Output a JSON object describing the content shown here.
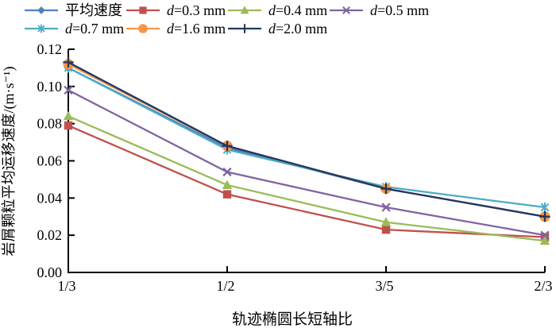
{
  "figure": {
    "background": "#ffffff",
    "axis_color": "#000000"
  },
  "chart_data": {
    "type": "line",
    "title": "",
    "xlabel": "轨迹椭圆长短轴比",
    "ylabel": "岩屑颗粒平均运移速度/(m·s⁻¹)",
    "categories": [
      "1/3",
      "1/2",
      "3/5",
      "2/3"
    ],
    "ylim": [
      0,
      0.12
    ],
    "ytick_step": 0.02,
    "ytick_labels": [
      "0.00",
      "0.02",
      "0.04",
      "0.06",
      "0.08",
      "0.10",
      "0.12"
    ],
    "grid": false,
    "legend_position": "top",
    "legend_rows": [
      [
        0,
        1,
        2,
        3
      ],
      [
        4,
        5,
        6
      ]
    ],
    "series": [
      {
        "name": "平均速度",
        "label_prefix": "",
        "label_rest": "平均速度",
        "marker": "diamond",
        "color": "#4F81BD",
        "values": [
          0.11,
          0.067,
          0.045,
          0.03
        ]
      },
      {
        "name": "d=0.3 mm",
        "label_prefix": "d",
        "label_rest": "=0.3 mm",
        "marker": "square",
        "color": "#C0504D",
        "values": [
          0.079,
          0.042,
          0.023,
          0.019
        ]
      },
      {
        "name": "d=0.4 mm",
        "label_prefix": "d",
        "label_rest": "=0.4 mm",
        "marker": "triangle",
        "color": "#9BBB59",
        "values": [
          0.084,
          0.047,
          0.027,
          0.017
        ]
      },
      {
        "name": "d=0.5 mm",
        "label_prefix": "d",
        "label_rest": "=0.5 mm",
        "marker": "x",
        "color": "#8064A2",
        "values": [
          0.098,
          0.054,
          0.035,
          0.02
        ]
      },
      {
        "name": "d=0.7 mm",
        "label_prefix": "d",
        "label_rest": "=0.7 mm",
        "marker": "asterisk",
        "color": "#4BACC6",
        "values": [
          0.11,
          0.066,
          0.046,
          0.035
        ]
      },
      {
        "name": "d=1.6 mm",
        "label_prefix": "d",
        "label_rest": "=1.6 mm",
        "marker": "circle",
        "color": "#F79646",
        "values": [
          0.112,
          0.068,
          0.045,
          0.03
        ]
      },
      {
        "name": "d=2.0 mm",
        "label_prefix": "d",
        "label_rest": "=2.0 mm",
        "marker": "plus",
        "color": "#1F3864",
        "values": [
          0.113,
          0.068,
          0.045,
          0.03
        ]
      }
    ]
  }
}
